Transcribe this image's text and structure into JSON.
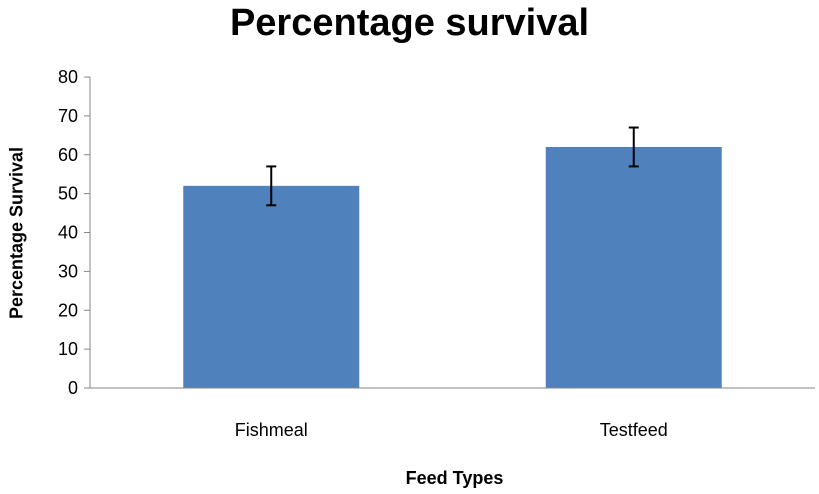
{
  "chart_data": {
    "type": "bar",
    "title": "Percentage survival",
    "xlabel": "Feed Types",
    "ylabel": "Percentage Survival",
    "categories": [
      "Fishmeal",
      "Testfeed"
    ],
    "values": [
      52,
      62
    ],
    "error_bars": [
      5,
      5
    ],
    "ylim": [
      0,
      80
    ],
    "yticks": [
      0,
      10,
      20,
      30,
      40,
      50,
      60,
      70,
      80
    ],
    "bar_color": "#4F81BD",
    "grid": false,
    "legend": "none"
  }
}
